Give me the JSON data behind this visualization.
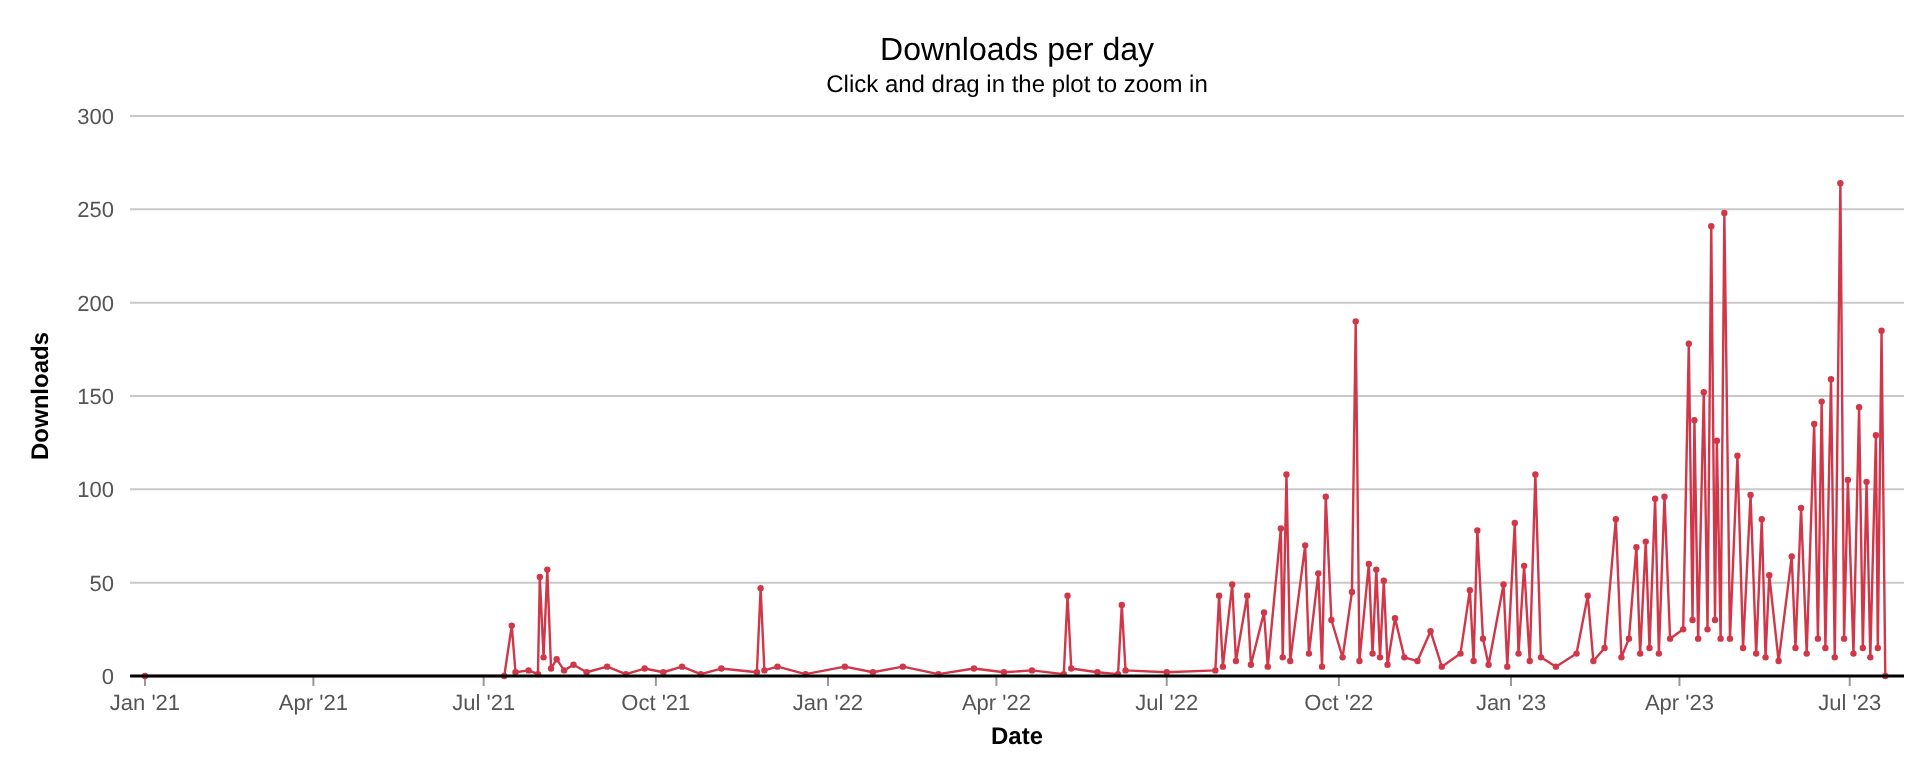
{
  "chart_data": {
    "type": "line",
    "title": "Downloads per day",
    "subtitle": "Click and drag in the plot to zoom in",
    "xlabel": "Date",
    "ylabel": "Downloads",
    "x": [
      "2021-01-01",
      "2021-07-12",
      "2021-07-16",
      "2021-07-18",
      "2021-07-25",
      "2021-07-30",
      "2021-07-31",
      "2021-08-02",
      "2021-08-04",
      "2021-08-06",
      "2021-08-09",
      "2021-08-13",
      "2021-08-18",
      "2021-08-25",
      "2021-09-05",
      "2021-09-15",
      "2021-09-25",
      "2021-10-05",
      "2021-10-15",
      "2021-10-25",
      "2021-11-05",
      "2021-11-24",
      "2021-11-26",
      "2021-11-28",
      "2021-12-05",
      "2021-12-20",
      "2022-01-10",
      "2022-01-25",
      "2022-02-10",
      "2022-03-01",
      "2022-03-20",
      "2022-04-05",
      "2022-04-20",
      "2022-05-07",
      "2022-05-09",
      "2022-05-11",
      "2022-05-25",
      "2022-06-05",
      "2022-06-07",
      "2022-06-09",
      "2022-07-01",
      "2022-07-27",
      "2022-07-29",
      "2022-07-31",
      "2022-08-05",
      "2022-08-07",
      "2022-08-13",
      "2022-08-15",
      "2022-08-22",
      "2022-08-24",
      "2022-08-31",
      "2022-09-01",
      "2022-09-03",
      "2022-09-05",
      "2022-09-13",
      "2022-09-15",
      "2022-09-20",
      "2022-09-22",
      "2022-09-24",
      "2022-09-27",
      "2022-10-03",
      "2022-10-08",
      "2022-10-10",
      "2022-10-12",
      "2022-10-17",
      "2022-10-19",
      "2022-10-21",
      "2022-10-23",
      "2022-10-25",
      "2022-10-27",
      "2022-10-31",
      "2022-11-05",
      "2022-11-12",
      "2022-11-19",
      "2022-11-25",
      "2022-12-05",
      "2022-12-10",
      "2022-12-12",
      "2022-12-14",
      "2022-12-17",
      "2022-12-20",
      "2022-12-28",
      "2022-12-30",
      "2023-01-03",
      "2023-01-05",
      "2023-01-08",
      "2023-01-11",
      "2023-01-14",
      "2023-01-17",
      "2023-01-25",
      "2023-02-05",
      "2023-02-11",
      "2023-02-14",
      "2023-02-20",
      "2023-02-26",
      "2023-03-01",
      "2023-03-05",
      "2023-03-09",
      "2023-03-11",
      "2023-03-14",
      "2023-03-16",
      "2023-03-19",
      "2023-03-21",
      "2023-03-24",
      "2023-03-27",
      "2023-04-03",
      "2023-04-06",
      "2023-04-08",
      "2023-04-09",
      "2023-04-11",
      "2023-04-14",
      "2023-04-16",
      "2023-04-18",
      "2023-04-20",
      "2023-04-21",
      "2023-04-23",
      "2023-04-25",
      "2023-04-28",
      "2023-05-02",
      "2023-05-05",
      "2023-05-09",
      "2023-05-12",
      "2023-05-15",
      "2023-05-17",
      "2023-05-19",
      "2023-05-24",
      "2023-05-31",
      "2023-06-02",
      "2023-06-05",
      "2023-06-08",
      "2023-06-12",
      "2023-06-14",
      "2023-06-16",
      "2023-06-18",
      "2023-06-21",
      "2023-06-23",
      "2023-06-26",
      "2023-06-28",
      "2023-06-30",
      "2023-07-03",
      "2023-07-06",
      "2023-07-08",
      "2023-07-10",
      "2023-07-12",
      "2023-07-15",
      "2023-07-16",
      "2023-07-18",
      "2023-07-20"
    ],
    "series": [
      {
        "color": "#d0384a",
        "values": [
          0,
          0,
          27,
          2,
          3,
          1,
          53,
          10,
          57,
          4,
          9,
          3,
          6,
          2,
          5,
          1,
          4,
          2,
          5,
          1,
          4,
          2,
          47,
          3,
          5,
          1,
          5,
          2,
          5,
          1,
          4,
          2,
          3,
          1,
          43,
          4,
          2,
          1,
          38,
          3,
          2,
          3,
          43,
          5,
          49,
          8,
          43,
          6,
          34,
          5,
          79,
          10,
          108,
          8,
          70,
          12,
          55,
          5,
          96,
          30,
          10,
          45,
          190,
          8,
          60,
          12,
          57,
          10,
          51,
          6,
          31,
          10,
          8,
          24,
          5,
          12,
          46,
          8,
          78,
          20,
          6,
          49,
          5,
          82,
          12,
          59,
          8,
          108,
          10,
          5,
          12,
          43,
          8,
          15,
          84,
          10,
          20,
          69,
          12,
          72,
          15,
          95,
          12,
          96,
          20,
          25,
          178,
          30,
          137,
          20,
          152,
          25,
          241,
          30,
          126,
          20,
          248,
          20,
          118,
          15,
          97,
          12,
          84,
          10,
          54,
          8,
          64,
          15,
          90,
          12,
          135,
          20,
          147,
          15,
          159,
          10,
          264,
          20,
          105,
          12,
          144,
          15,
          104,
          10,
          129,
          15,
          185,
          0
        ]
      }
    ],
    "xlim": [
      "2020-12-24",
      "2023-07-30"
    ],
    "xticks": [
      {
        "value": "2021-01-01",
        "label": "Jan '21"
      },
      {
        "value": "2021-04-01",
        "label": "Apr '21"
      },
      {
        "value": "2021-07-01",
        "label": "Jul '21"
      },
      {
        "value": "2021-10-01",
        "label": "Oct '21"
      },
      {
        "value": "2022-01-01",
        "label": "Jan '22"
      },
      {
        "value": "2022-04-01",
        "label": "Apr '22"
      },
      {
        "value": "2022-07-01",
        "label": "Jul '22"
      },
      {
        "value": "2022-10-01",
        "label": "Oct '22"
      },
      {
        "value": "2023-01-01",
        "label": "Jan '23"
      },
      {
        "value": "2023-04-01",
        "label": "Apr '23"
      },
      {
        "value": "2023-07-01",
        "label": "Jul '23"
      }
    ],
    "ylim": [
      0,
      300
    ],
    "yticks": [
      0,
      50,
      100,
      150,
      200,
      250,
      300
    ],
    "grid": "y",
    "marker": "circle",
    "line_style": "solid"
  }
}
